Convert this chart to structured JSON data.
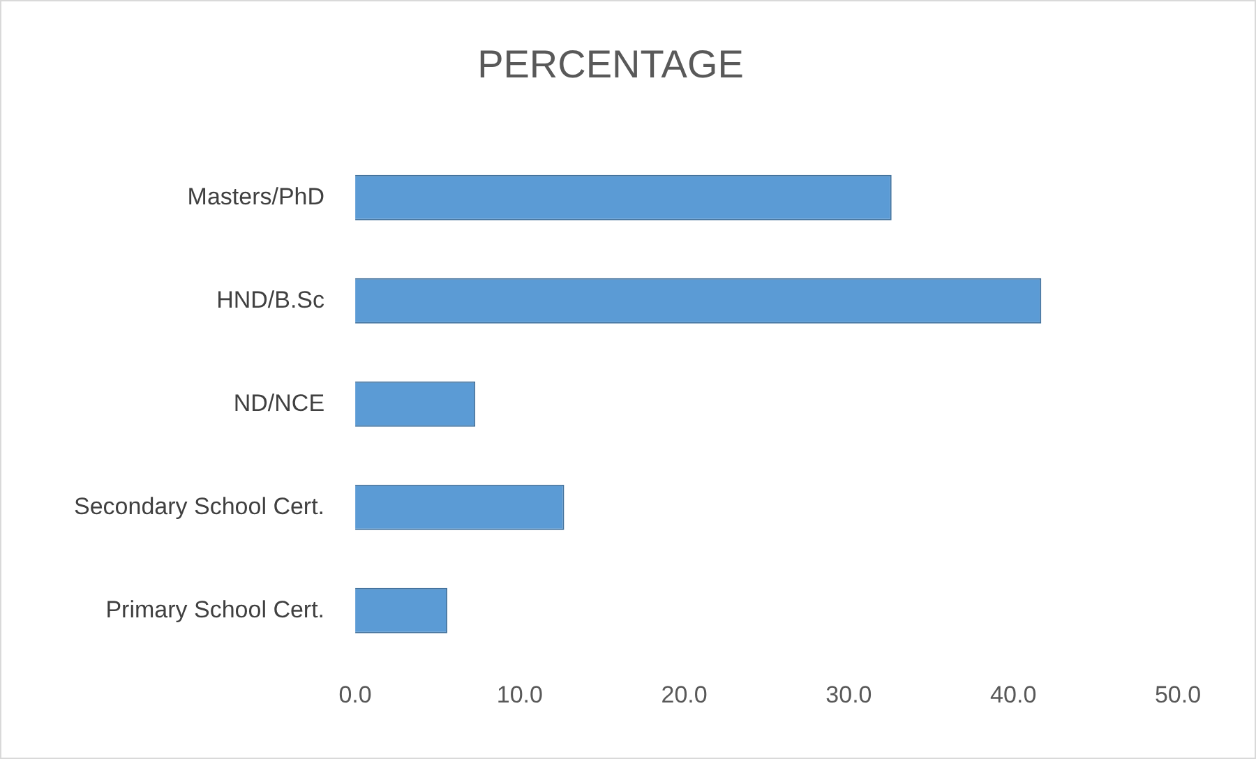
{
  "chart_data": {
    "type": "bar",
    "orientation": "horizontal",
    "title": "PERCENTAGE",
    "categories": [
      "Masters/PhD",
      "HND/B.Sc",
      "ND/NCE",
      "Secondary School Cert.",
      "Primary School Cert."
    ],
    "values": [
      32.6,
      41.7,
      7.3,
      12.7,
      5.6
    ],
    "color": "#5b9bd5",
    "xlim": [
      0,
      50
    ],
    "xticks": [
      {
        "value": 0,
        "label": "0.0"
      },
      {
        "value": 10,
        "label": "10.0"
      },
      {
        "value": 20,
        "label": "20.0"
      },
      {
        "value": 30,
        "label": "30.0"
      },
      {
        "value": 40,
        "label": "40.0"
      },
      {
        "value": 50,
        "label": "50.0"
      }
    ],
    "grid": false,
    "legend": false
  }
}
